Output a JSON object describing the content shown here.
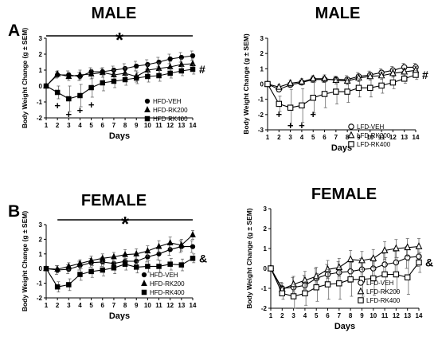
{
  "panel_labels": [
    "A",
    "B"
  ],
  "chart_data": [
    {
      "type": "line",
      "title": "MALE",
      "xlabel": "Days",
      "ylabel": "Body Weight Change (g ± SEM)",
      "x": [
        1,
        2,
        3,
        4,
        5,
        6,
        7,
        8,
        9,
        10,
        11,
        12,
        13,
        14
      ],
      "xlim": [
        1,
        14
      ],
      "ylim": [
        -2,
        3
      ],
      "yticks": [
        -2,
        -1,
        0,
        1,
        2,
        3
      ],
      "legend_position": "right",
      "marker_fill": "filled",
      "series": [
        {
          "name": "HFD-VEH",
          "marker": "circle",
          "values": [
            0,
            0.7,
            0.7,
            0.6,
            0.9,
            0.9,
            1.0,
            1.1,
            1.25,
            1.35,
            1.5,
            1.7,
            1.8,
            1.9
          ],
          "errors": [
            0,
            0.2,
            0.25,
            0.25,
            0.25,
            0.2,
            0.25,
            0.3,
            0.3,
            0.3,
            0.3,
            0.3,
            0.3,
            0.3
          ]
        },
        {
          "name": "HFD-RK200",
          "marker": "triangle",
          "values": [
            0,
            0.75,
            0.6,
            0.7,
            0.75,
            0.85,
            0.7,
            0.8,
            0.6,
            1.0,
            1.1,
            1.2,
            1.35,
            1.4
          ],
          "errors": [
            0,
            0.2,
            0.25,
            0.3,
            0.3,
            0.3,
            0.3,
            0.35,
            0.35,
            0.35,
            0.35,
            0.35,
            0.35,
            0.35
          ]
        },
        {
          "name": "HFD-RK400",
          "marker": "square",
          "values": [
            0,
            -0.4,
            -0.8,
            -0.6,
            -0.1,
            0.2,
            0.3,
            0.4,
            0.5,
            0.6,
            0.65,
            0.8,
            0.95,
            1.05
          ],
          "errors": [
            0,
            0.4,
            0.8,
            0.7,
            0.6,
            0.5,
            0.4,
            0.35,
            0.35,
            0.35,
            0.35,
            0.3,
            0.3,
            0.3
          ]
        }
      ],
      "annotations": {
        "sig_bar": {
          "x_start": 1,
          "x_end": 14,
          "y": 3.0,
          "label": "*"
        },
        "plus": [
          {
            "x": 2,
            "y": -1.25
          },
          {
            "x": 3,
            "y": -1.8
          },
          {
            "x": 4,
            "y": -1.55
          },
          {
            "x": 5,
            "y": -1.2
          }
        ],
        "end_mark": {
          "label": "#",
          "y": 1.05
        }
      }
    },
    {
      "type": "line",
      "title": "MALE",
      "xlabel": "Days",
      "ylabel": "Body Weight Change (g ± SEM)",
      "x": [
        1,
        2,
        3,
        4,
        5,
        6,
        7,
        8,
        9,
        10,
        11,
        12,
        13,
        14
      ],
      "xlim": [
        1,
        14
      ],
      "ylim": [
        -3,
        3
      ],
      "yticks": [
        -3,
        -2,
        -1,
        0,
        1,
        2,
        3
      ],
      "legend_position": "bottom-right",
      "marker_fill": "open",
      "series": [
        {
          "name": "LFD-VEH",
          "marker": "circle",
          "values": [
            0,
            -0.35,
            -0.05,
            0.1,
            0.3,
            0.3,
            0.3,
            0.3,
            0.5,
            0.6,
            0.75,
            0.9,
            1.1,
            1.1
          ],
          "errors": [
            0,
            0.15,
            0.15,
            0.15,
            0.2,
            0.2,
            0.2,
            0.25,
            0.25,
            0.25,
            0.25,
            0.25,
            0.25,
            0.25
          ]
        },
        {
          "name": "LFD-RK200",
          "marker": "triangle",
          "values": [
            0,
            -0.2,
            0.05,
            0.15,
            0.35,
            0.35,
            0.25,
            0.2,
            0.4,
            0.5,
            0.55,
            0.7,
            0.8,
            0.9
          ],
          "errors": [
            0,
            0.15,
            0.2,
            0.2,
            0.2,
            0.25,
            0.25,
            0.25,
            0.25,
            0.25,
            0.25,
            0.25,
            0.25,
            0.25
          ]
        },
        {
          "name": "LFD-RK400",
          "marker": "square",
          "values": [
            0,
            -1.3,
            -1.55,
            -1.4,
            -0.9,
            -0.65,
            -0.5,
            -0.5,
            -0.25,
            -0.25,
            -0.1,
            0.1,
            0.35,
            0.6
          ],
          "errors": [
            0,
            0.5,
            1.2,
            1.1,
            1.0,
            0.9,
            0.8,
            0.7,
            0.6,
            0.6,
            0.5,
            0.4,
            0.3,
            0.3
          ]
        }
      ],
      "annotations": {
        "plus": [
          {
            "x": 2,
            "y": -2.0
          },
          {
            "x": 3,
            "y": -2.75
          },
          {
            "x": 4,
            "y": -2.75
          },
          {
            "x": 5,
            "y": -2.0
          }
        ],
        "end_mark": {
          "label": "#",
          "y": 0.6
        }
      }
    },
    {
      "type": "line",
      "title": "FEMALE",
      "xlabel": "Days",
      "ylabel": "Body Weight Change (g ± SEM)",
      "x": [
        1,
        2,
        3,
        4,
        5,
        6,
        7,
        8,
        9,
        10,
        11,
        12,
        13,
        14
      ],
      "xlim": [
        1,
        14
      ],
      "ylim": [
        -2,
        3
      ],
      "yticks": [
        -2,
        -1,
        0,
        1,
        2,
        3
      ],
      "legend_position": "bottom-right",
      "marker_fill": "filled",
      "series": [
        {
          "name": "HFD-VEH",
          "marker": "circle",
          "values": [
            0,
            -0.1,
            -0.05,
            0.2,
            0.4,
            0.45,
            0.35,
            0.5,
            0.5,
            0.8,
            1.0,
            1.3,
            1.5,
            1.5
          ],
          "errors": [
            0,
            0.3,
            0.3,
            0.3,
            0.3,
            0.3,
            0.35,
            0.35,
            0.35,
            0.35,
            0.4,
            0.4,
            0.4,
            0.4
          ]
        },
        {
          "name": "HFD-RK200",
          "marker": "triangle",
          "values": [
            0,
            -0.05,
            0.15,
            0.35,
            0.55,
            0.7,
            0.8,
            0.95,
            1.0,
            1.2,
            1.5,
            1.75,
            1.6,
            2.3
          ],
          "errors": [
            0,
            0.25,
            0.25,
            0.25,
            0.3,
            0.3,
            0.3,
            0.35,
            0.35,
            0.35,
            0.4,
            0.4,
            0.4,
            0.3
          ]
        },
        {
          "name": "HFD-RK400",
          "marker": "square",
          "values": [
            0,
            -1.25,
            -1.1,
            -0.4,
            -0.2,
            -0.1,
            0.05,
            0.3,
            0.1,
            0.15,
            0.15,
            0.3,
            0.25,
            0.7
          ],
          "errors": [
            0,
            0.35,
            0.4,
            0.4,
            0.4,
            0.4,
            0.4,
            0.4,
            0.4,
            0.4,
            0.4,
            0.4,
            0.4,
            0.3
          ]
        }
      ],
      "annotations": {
        "sig_bar": {
          "x_start": 2,
          "x_end": 14,
          "y": 3.0,
          "label": "*"
        },
        "end_mark": {
          "label": "&",
          "y": 0.7
        }
      }
    },
    {
      "type": "line",
      "title": "FEMALE",
      "xlabel": "Days",
      "ylabel": "Body Weight Change (g ± SEM)",
      "x": [
        1,
        2,
        3,
        4,
        5,
        6,
        7,
        8,
        9,
        10,
        11,
        12,
        13,
        14
      ],
      "xlim": [
        1,
        14
      ],
      "ylim": [
        -2,
        3
      ],
      "yticks": [
        -2,
        -1,
        0,
        1,
        2,
        3
      ],
      "legend_position": "bottom-right",
      "marker_fill": "open",
      "series": [
        {
          "name": "LFD-VEH",
          "marker": "circle",
          "values": [
            0,
            -1.0,
            -0.95,
            -0.85,
            -0.5,
            -0.3,
            -0.2,
            -0.15,
            -0.05,
            0.0,
            0.2,
            0.3,
            0.55,
            0.6
          ],
          "errors": [
            0,
            0.3,
            0.5,
            0.5,
            0.5,
            0.5,
            0.55,
            0.55,
            0.55,
            0.55,
            0.55,
            0.55,
            0.55,
            0.5
          ]
        },
        {
          "name": "LFD-RK200",
          "marker": "triangle",
          "values": [
            0,
            -1.05,
            -0.8,
            -0.6,
            -0.4,
            -0.05,
            0.05,
            0.45,
            0.4,
            0.5,
            0.9,
            1.0,
            1.05,
            1.1
          ],
          "errors": [
            0,
            0.3,
            0.4,
            0.45,
            0.45,
            0.45,
            0.45,
            0.45,
            0.45,
            0.45,
            0.45,
            0.45,
            0.45,
            0.4
          ]
        },
        {
          "name": "LFD-RK400",
          "marker": "square",
          "values": [
            0,
            -1.25,
            -1.4,
            -1.25,
            -0.95,
            -0.8,
            -0.75,
            -0.55,
            -0.55,
            -0.5,
            -0.3,
            -0.3,
            -0.45,
            0.3
          ],
          "errors": [
            0,
            0.3,
            0.6,
            0.6,
            0.7,
            0.75,
            0.8,
            0.85,
            0.85,
            0.85,
            0.85,
            0.85,
            0.85,
            0.5
          ]
        }
      ],
      "annotations": {
        "end_mark": {
          "label": "&",
          "y": 0.3
        }
      }
    }
  ]
}
